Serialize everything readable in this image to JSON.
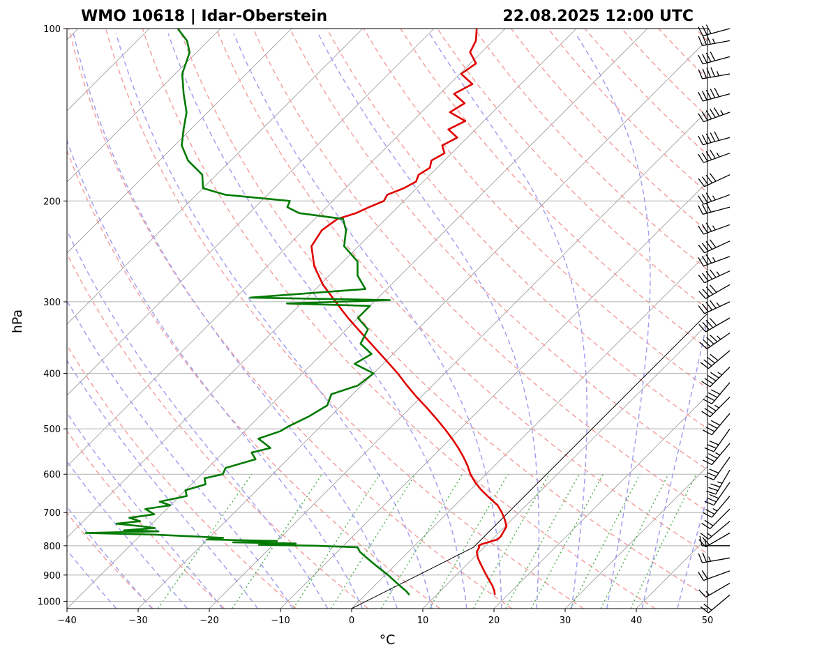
{
  "chart_data": {
    "type": "line",
    "title_left": "WMO 10618 | Idar-Oberstein",
    "title_right": "22.08.2025 12:00 UTC",
    "xlabel": "°C",
    "ylabel": "hPa",
    "x_axis": {
      "range": [
        -40,
        50
      ],
      "ticks": [
        -40,
        -30,
        -20,
        -10,
        0,
        10,
        20,
        30,
        40,
        50
      ],
      "tick_labels": [
        "−40",
        "−30",
        "−20",
        "−10",
        "0",
        "10",
        "20",
        "30",
        "40",
        "50"
      ]
    },
    "y_axis": {
      "scale": "log",
      "range": [
        1030,
        100
      ],
      "ticks": [
        1000,
        900,
        800,
        700,
        600,
        500,
        400,
        300,
        200,
        100
      ],
      "tick_labels": [
        "1000",
        "900",
        "800",
        "700",
        "600",
        "500",
        "400",
        "300",
        "200",
        "100"
      ]
    },
    "skew": true,
    "grid": true,
    "colors": {
      "temperature": "#e00000",
      "dewpoint": "#007a00",
      "dry_adiabat": "#f4a0a0",
      "moist_adiabat": "#a0a0f0",
      "mixing_ratio": "#4cb04c",
      "isotherm": "#999999",
      "parcel": "#000000",
      "wind_barb": "#000000"
    },
    "series": [
      {
        "key": "temperature",
        "pressure": [
          975,
          960,
          940,
          920,
          900,
          880,
          860,
          840,
          820,
          805,
          800,
          795,
          780,
          770,
          760,
          740,
          720,
          700,
          680,
          660,
          640,
          620,
          600,
          580,
          560,
          540,
          520,
          500,
          480,
          460,
          440,
          420,
          400,
          380,
          360,
          340,
          320,
          300,
          280,
          260,
          240,
          225,
          215,
          210,
          205,
          200,
          195,
          190,
          185,
          180,
          175,
          170,
          165,
          160,
          155,
          150,
          145,
          140,
          135,
          130,
          125,
          120,
          115,
          110,
          105,
          100
        ],
        "temperature": [
          18.2,
          17.6,
          16.6,
          15.4,
          14.2,
          13.0,
          11.8,
          10.6,
          9.6,
          9.3,
          9.0,
          9.2,
          10.8,
          10.8,
          10.6,
          10.2,
          9.0,
          7.6,
          6.0,
          3.8,
          1.6,
          -0.4,
          -2.2,
          -3.8,
          -5.6,
          -7.6,
          -9.8,
          -12.2,
          -14.8,
          -17.6,
          -20.6,
          -23.6,
          -26.6,
          -30.0,
          -33.6,
          -37.4,
          -41.4,
          -45.4,
          -49.6,
          -53.4,
          -56.6,
          -57.4,
          -56.8,
          -55.0,
          -54.0,
          -52.8,
          -53.2,
          -51.8,
          -51.0,
          -51.6,
          -51.0,
          -51.8,
          -51.0,
          -52.4,
          -51.4,
          -53.8,
          -52.6,
          -56.0,
          -55.2,
          -58.0,
          -56.8,
          -59.8,
          -59.2,
          -61.6,
          -62.4,
          -64.0
        ]
      },
      {
        "key": "dewpoint",
        "pressure": [
          975,
          960,
          940,
          920,
          900,
          880,
          860,
          840,
          820,
          805,
          800,
          797,
          793,
          789,
          785,
          780,
          775,
          770,
          765,
          760,
          755,
          752,
          745,
          740,
          732,
          725,
          715,
          705,
          690,
          680,
          670,
          655,
          640,
          625,
          610,
          600,
          585,
          565,
          550,
          540,
          520,
          505,
          495,
          475,
          455,
          435,
          420,
          400,
          385,
          370,
          355,
          335,
          320,
          305,
          302,
          298,
          295,
          285,
          270,
          255,
          240,
          225,
          215,
          210,
          205,
          200,
          195,
          190,
          180,
          170,
          160,
          150,
          140,
          130,
          120,
          110,
          105,
          100
        ],
        "temperature": [
          6.2,
          5.2,
          3.6,
          2.0,
          0.4,
          -1.4,
          -3.2,
          -5.0,
          -6.8,
          -7.8,
          -14.0,
          -22.0,
          -17.0,
          -26.0,
          -20.0,
          -30.0,
          -28.0,
          -33.0,
          -38.0,
          -48.0,
          -38.0,
          -43.0,
          -39.0,
          -41.0,
          -45.0,
          -42.0,
          -44.0,
          -41.0,
          -43.0,
          -40.0,
          -42.0,
          -39.0,
          -40.0,
          -38.0,
          -39.0,
          -37.0,
          -37.5,
          -34.5,
          -36.0,
          -34.0,
          -37.0,
          -35.0,
          -34.5,
          -33.0,
          -32.0,
          -33.0,
          -30.5,
          -30.0,
          -34.0,
          -33.0,
          -36.0,
          -37.0,
          -40.0,
          -40.0,
          -52.0,
          -38.0,
          -58.0,
          -43.0,
          -46.0,
          -48.0,
          -52.0,
          -54.0,
          -56.0,
          -63.0,
          -65.5,
          -66.0,
          -76.0,
          -80.0,
          -82.0,
          -86.0,
          -89.0,
          -91.0,
          -93.0,
          -96.0,
          -99.0,
          -101.0,
          -103.0,
          -106.0
        ]
      }
    ],
    "parcel": {
      "pressure": [
        1030,
        805,
        250
      ],
      "temperature": [
        0,
        8.5,
        8.5
      ]
    },
    "wind_barbs": {
      "pressure": [
        975,
        930,
        885,
        840,
        800,
        760,
        725,
        690,
        655,
        620,
        590,
        560,
        530,
        500,
        470,
        440,
        415,
        390,
        365,
        340,
        320,
        300,
        280,
        265,
        250,
        235,
        220,
        205,
        195,
        180,
        165,
        155,
        140,
        130,
        120,
        112,
        105,
        100
      ],
      "speed_kt": [
        20,
        15,
        20,
        25,
        15,
        20,
        15,
        20,
        25,
        30,
        35,
        30,
        35,
        30,
        40,
        35,
        40,
        45,
        40,
        45,
        40,
        45,
        40,
        45,
        35,
        40,
        35,
        30,
        35,
        40,
        45,
        50,
        55,
        50,
        45,
        40,
        35,
        30
      ],
      "direction_deg": [
        230,
        240,
        250,
        260,
        270,
        240,
        230,
        225,
        220,
        215,
        210,
        215,
        220,
        215,
        220,
        225,
        220,
        225,
        230,
        235,
        240,
        245,
        240,
        245,
        250,
        245,
        250,
        255,
        250,
        245,
        250,
        255,
        250,
        255,
        260,
        255,
        260,
        255
      ]
    }
  }
}
